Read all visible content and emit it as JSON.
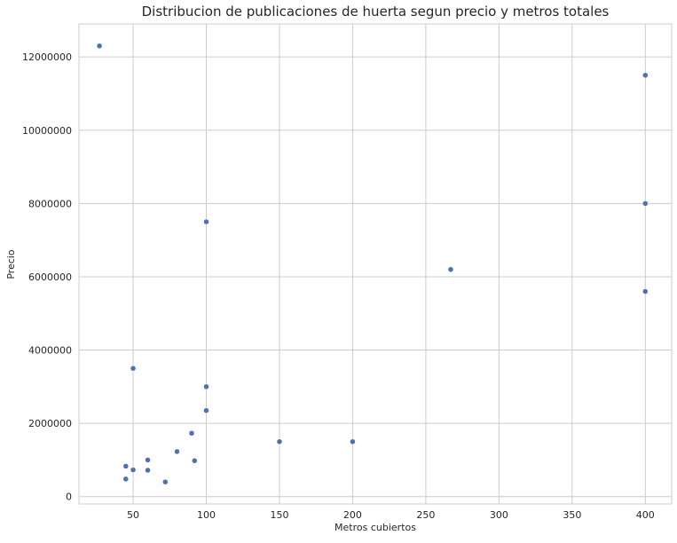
{
  "chart_data": {
    "type": "scatter",
    "title": "Distribucion de publicaciones de huerta segun precio y metros totales",
    "xlabel": "Metros cubiertos",
    "ylabel": "Precio",
    "xlim": [
      13,
      418
    ],
    "ylim": [
      -200000,
      12900000
    ],
    "x_ticks": [
      50,
      100,
      150,
      200,
      250,
      300,
      350,
      400
    ],
    "x_tick_labels": [
      "50",
      "100",
      "150",
      "200",
      "250",
      "300",
      "350",
      "400"
    ],
    "y_ticks": [
      0,
      2000000,
      4000000,
      6000000,
      8000000,
      10000000,
      12000000
    ],
    "y_tick_labels": [
      "0",
      "2000000",
      "4000000",
      "6000000",
      "8000000",
      "10000000",
      "12000000"
    ],
    "grid": true,
    "marker_color": "#4c72b0",
    "points": [
      {
        "x": 27,
        "y": 12300000
      },
      {
        "x": 400,
        "y": 11500000
      },
      {
        "x": 400,
        "y": 8000000
      },
      {
        "x": 100,
        "y": 7500000
      },
      {
        "x": 267,
        "y": 6200000
      },
      {
        "x": 400,
        "y": 5600000
      },
      {
        "x": 50,
        "y": 3500000
      },
      {
        "x": 100,
        "y": 3000000
      },
      {
        "x": 100,
        "y": 2350000
      },
      {
        "x": 90,
        "y": 1730000
      },
      {
        "x": 150,
        "y": 1500000
      },
      {
        "x": 200,
        "y": 1500000
      },
      {
        "x": 80,
        "y": 1230000
      },
      {
        "x": 60,
        "y": 1000000
      },
      {
        "x": 92,
        "y": 980000
      },
      {
        "x": 45,
        "y": 830000
      },
      {
        "x": 50,
        "y": 730000
      },
      {
        "x": 60,
        "y": 720000
      },
      {
        "x": 45,
        "y": 480000
      },
      {
        "x": 72,
        "y": 400000
      }
    ]
  }
}
